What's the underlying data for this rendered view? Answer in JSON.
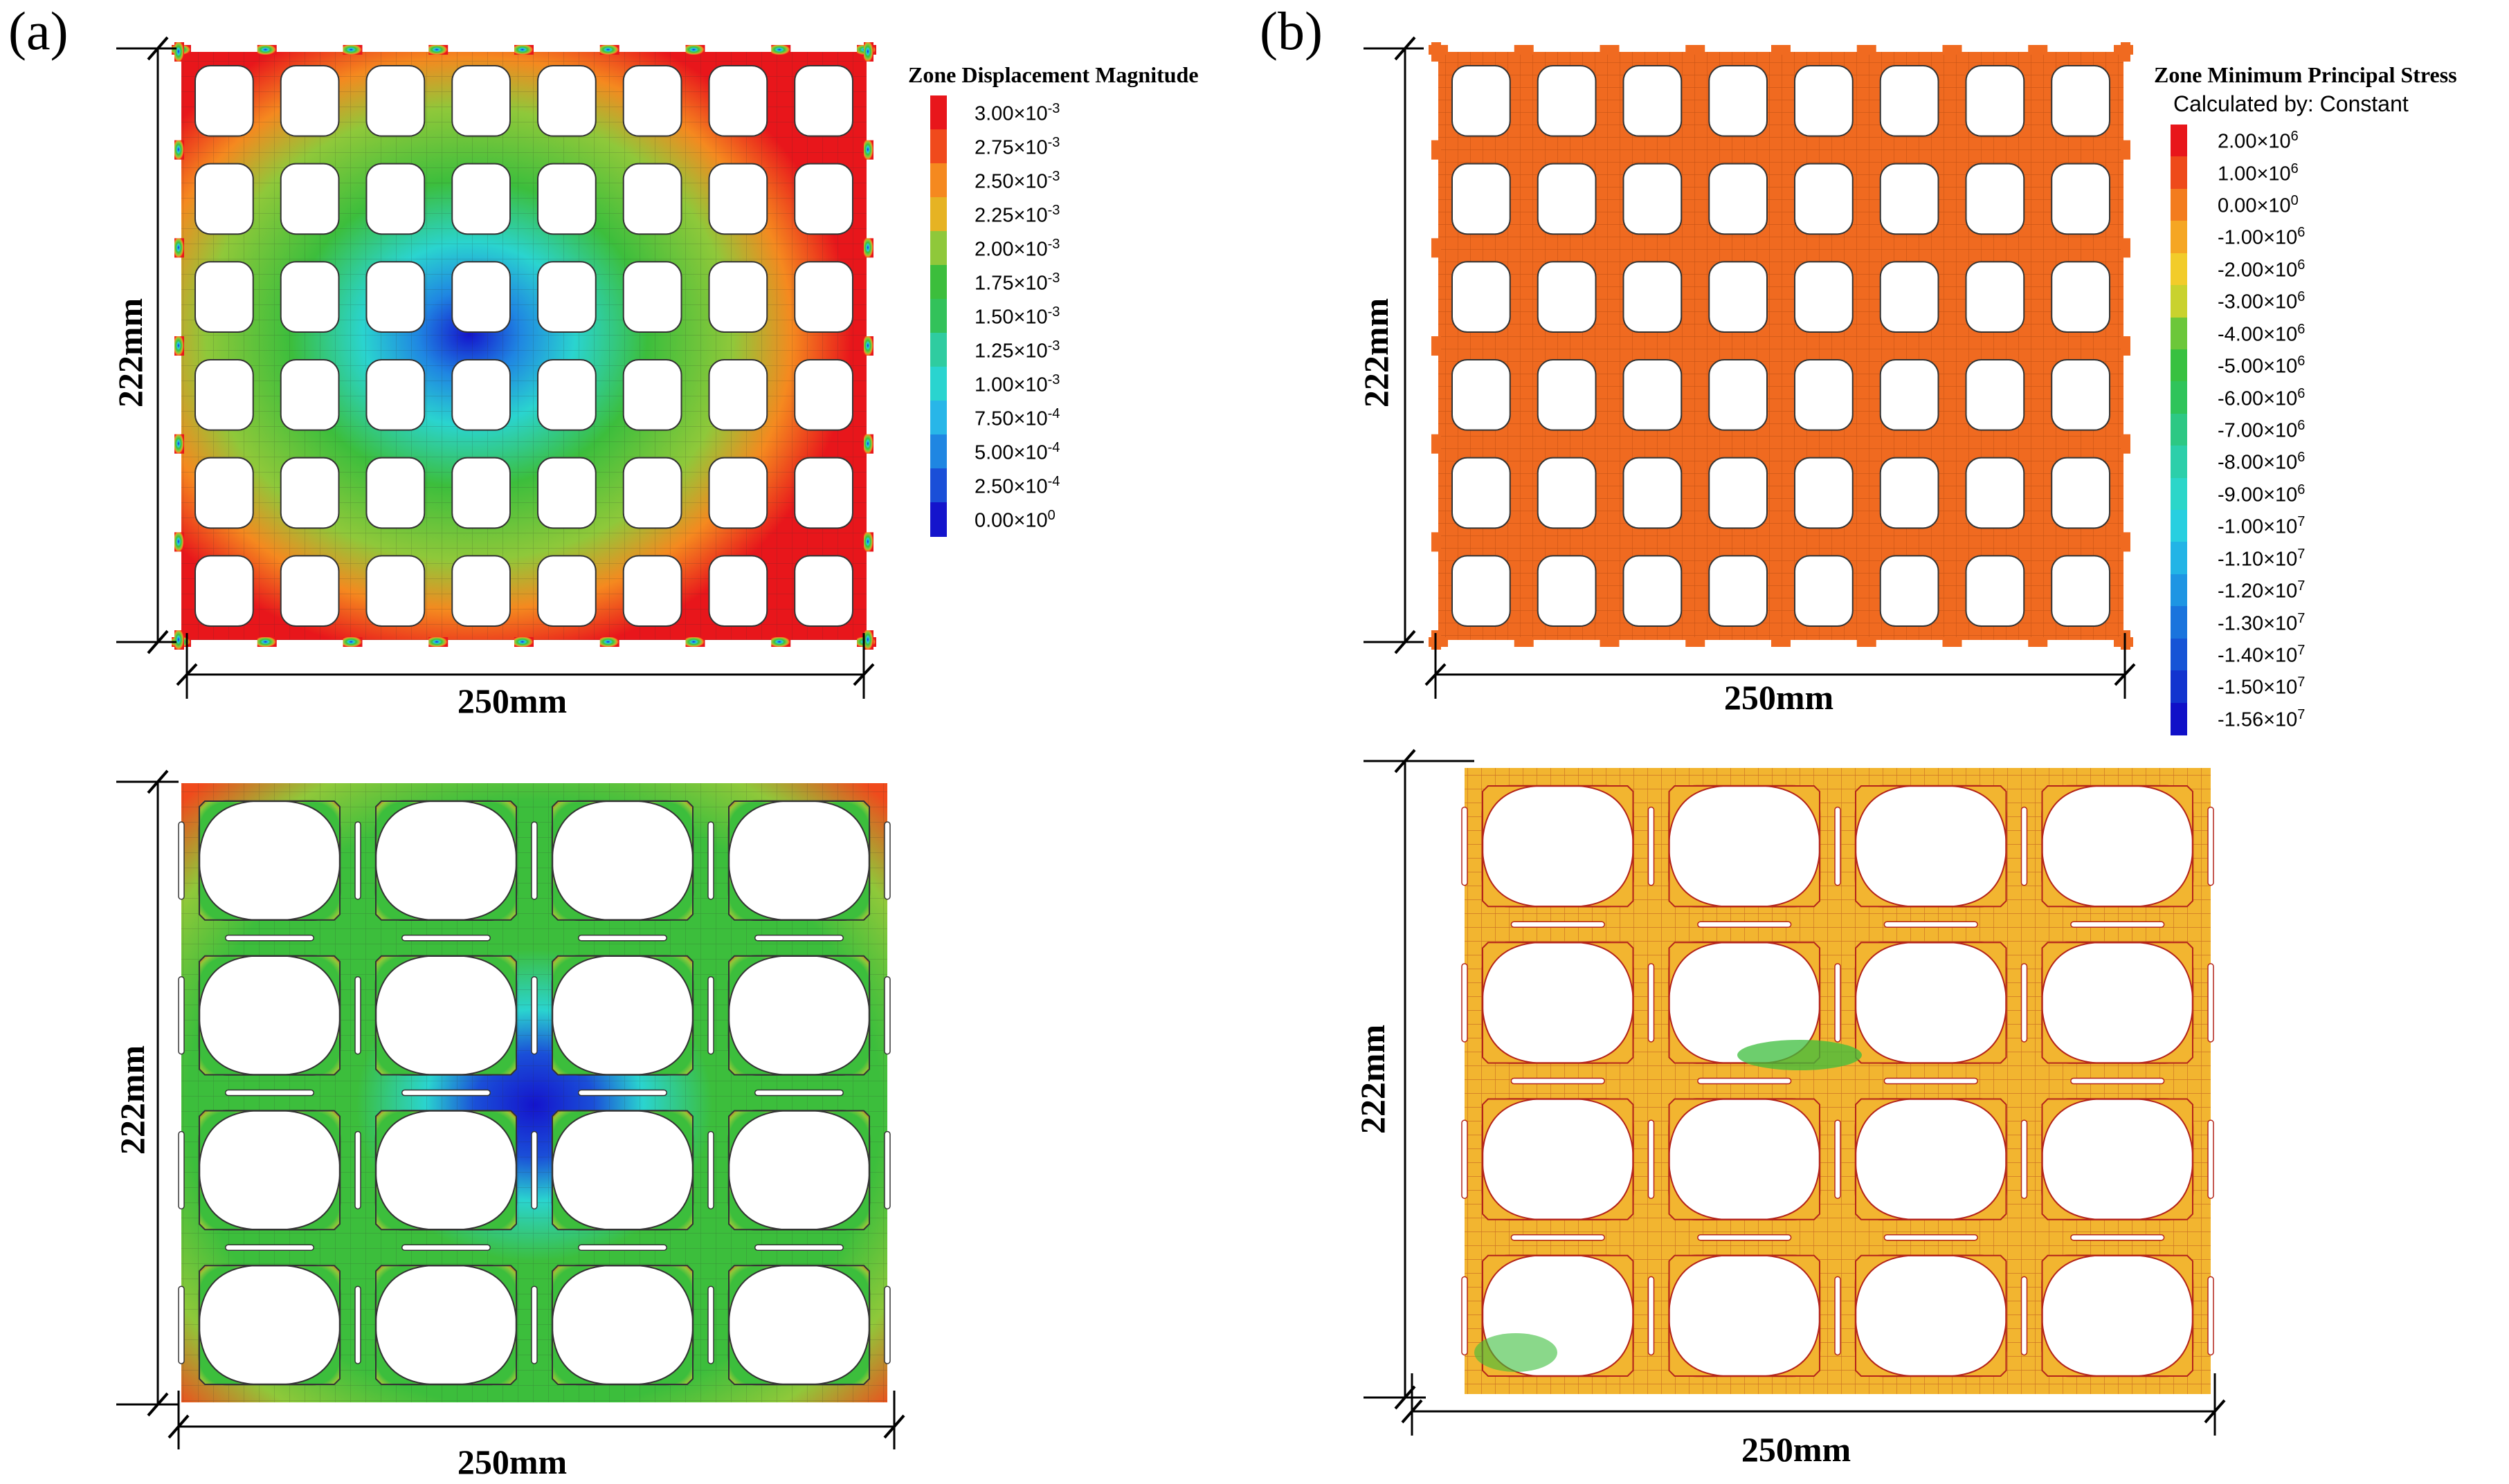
{
  "panels": {
    "a": {
      "label": "(a)",
      "legend": {
        "title": "Zone Displacement Magnitude",
        "subtitle": "",
        "entries": [
          {
            "text": "3.00×10-3",
            "color": "#e8161b"
          },
          {
            "text": "2.75×10-3",
            "color": "#f04a1c"
          },
          {
            "text": "2.50×10-3",
            "color": "#f5891f"
          },
          {
            "text": "2.25×10-3",
            "color": "#e6b323"
          },
          {
            "text": "2.00×10-3",
            "color": "#8fc83a"
          },
          {
            "text": "1.75×10-3",
            "color": "#3cbe3c"
          },
          {
            "text": "1.50×10-3",
            "color": "#32c25a"
          },
          {
            "text": "1.25×10-3",
            "color": "#2fcca0"
          },
          {
            "text": "1.00×10-3",
            "color": "#2ad4cf"
          },
          {
            "text": "7.50×10-4",
            "color": "#28b6e8"
          },
          {
            "text": "5.00×10-4",
            "color": "#1f86e2"
          },
          {
            "text": "2.50×10-4",
            "color": "#1a4fd8"
          },
          {
            "text": "0.00×100",
            "color": "#1414cc"
          }
        ]
      },
      "dims": {
        "height": "222mm",
        "width": "250mm"
      }
    },
    "b": {
      "label": "(b)",
      "legend": {
        "title": "Zone Minimum Principal Stress",
        "subtitle": "Calculated by: Constant",
        "entries": [
          {
            "text": "2.00×106",
            "color": "#e8161b"
          },
          {
            "text": "1.00×106",
            "color": "#ee4a1a"
          },
          {
            "text": "0.00×100",
            "color": "#f37c1e"
          },
          {
            "text": "-1.00×106",
            "color": "#f5a623"
          },
          {
            "text": "-2.00×106",
            "color": "#f2cc2a"
          },
          {
            "text": "-3.00×106",
            "color": "#c9d22e"
          },
          {
            "text": "-4.00×106",
            "color": "#6cc73a"
          },
          {
            "text": "-5.00×106",
            "color": "#38c140"
          },
          {
            "text": "-6.00×106",
            "color": "#2fc45a"
          },
          {
            "text": "-7.00×106",
            "color": "#2dc884"
          },
          {
            "text": "-8.00×106",
            "color": "#2ccfaa"
          },
          {
            "text": "-9.00×106",
            "color": "#2bd6c9"
          },
          {
            "text": "-1.00×107",
            "color": "#27cfe0"
          },
          {
            "text": "-1.10×107",
            "color": "#22b4e6"
          },
          {
            "text": "-1.20×107",
            "color": "#1e95e3"
          },
          {
            "text": "-1.30×107",
            "color": "#1a74dd"
          },
          {
            "text": "-1.40×107",
            "color": "#1654d6"
          },
          {
            "text": "-1.50×107",
            "color": "#1234cf"
          },
          {
            "text": "-1.56×107",
            "color": "#1010c8"
          }
        ]
      },
      "dims": {
        "height": "222mm",
        "width": "250mm"
      }
    }
  },
  "lower_panels": {
    "a": {
      "dims": {
        "height": "222mm",
        "width": "250mm"
      }
    },
    "b": {
      "dims": {
        "height": "222mm",
        "width": "250mm"
      }
    }
  },
  "colors": {
    "displacement_high": "#e8161b",
    "displacement_mid": "#3cbe3c",
    "displacement_low": "#1414cc",
    "stress_fill": "#f06a20",
    "stress_fill_lower": "#f2b530",
    "mesh_line": "#5a5a5a"
  }
}
